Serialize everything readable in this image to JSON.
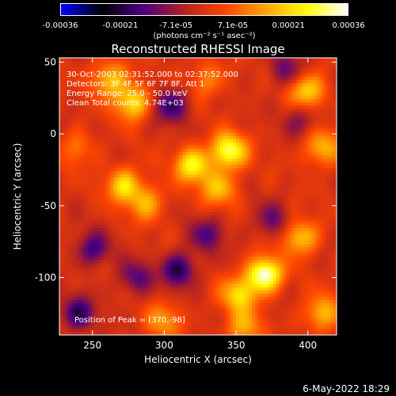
{
  "chart_data": {
    "type": "heatmap",
    "title": "Reconstructed RHESSI Image",
    "xlabel": "Heliocentric X (arcsec)",
    "ylabel": "Heliocentric Y (arcsec)",
    "xlim": [
      227,
      420
    ],
    "ylim": [
      -140,
      53
    ],
    "x_ticks": [
      250,
      300,
      350,
      400
    ],
    "y_ticks": [
      50,
      0,
      -50,
      -100
    ],
    "colorbar": {
      "min": -0.00036,
      "max": 0.00036,
      "tick_labels": [
        "-0.00036",
        "-0.00021",
        "-7.1e-05",
        "7.1e-05",
        "0.00021",
        "0.00036"
      ],
      "tick_values": [
        -0.00036,
        -0.00021,
        -7.1e-05,
        7.1e-05,
        0.00021,
        0.00036
      ],
      "units": "(photons cm⁻² s⁻¹ asec⁻²)",
      "colormap": [
        "#0000ff",
        "#000000",
        "#4b0082",
        "#b22222",
        "#ff4500",
        "#ffa500",
        "#ffff00",
        "#ffffff"
      ]
    },
    "annotations": [
      "30-Oct-2003 02:31:52.000 to 02:37:52.000",
      "Detectors: 3F 4F 5F 6F 7F 8F, Att 1",
      "Energy Range: 25.0 - 50.0 keV",
      "Clean     Total counts: 4.74E+03"
    ],
    "peak_label": "Position of Peak = [370,-98]",
    "peak_position": [
      370,
      -98
    ],
    "bright_sources": [
      {
        "x": 262,
        "y": 38,
        "value": 0.0002
      },
      {
        "x": 278,
        "y": 22,
        "value": 0.00024
      },
      {
        "x": 272,
        "y": -36,
        "value": 0.00022
      },
      {
        "x": 288,
        "y": -48,
        "value": 0.00016
      },
      {
        "x": 320,
        "y": -22,
        "value": 0.00026
      },
      {
        "x": 345,
        "y": -12,
        "value": 0.0003
      },
      {
        "x": 338,
        "y": -38,
        "value": 0.00018
      },
      {
        "x": 330,
        "y": 38,
        "value": 0.00012
      },
      {
        "x": 400,
        "y": 30,
        "value": 0.00022
      },
      {
        "x": 410,
        "y": -10,
        "value": 0.00018
      },
      {
        "x": 395,
        "y": -72,
        "value": 0.0002
      },
      {
        "x": 370,
        "y": -98,
        "value": 0.00036
      },
      {
        "x": 352,
        "y": -112,
        "value": 0.00022
      },
      {
        "x": 300,
        "y": -130,
        "value": 0.00014
      },
      {
        "x": 355,
        "y": -135,
        "value": 0.00016
      },
      {
        "x": 240,
        "y": -10,
        "value": 0.0001
      },
      {
        "x": 410,
        "y": -125,
        "value": 0.00018
      }
    ],
    "negative_sources": [
      {
        "x": 305,
        "y": 20,
        "value": -0.00018
      },
      {
        "x": 250,
        "y": -80,
        "value": -0.00016
      },
      {
        "x": 310,
        "y": -95,
        "value": -0.0002
      },
      {
        "x": 330,
        "y": -70,
        "value": -0.00014
      },
      {
        "x": 375,
        "y": -60,
        "value": -0.00012
      },
      {
        "x": 240,
        "y": -125,
        "value": -0.00018
      },
      {
        "x": 385,
        "y": 45,
        "value": -0.00012
      },
      {
        "x": 280,
        "y": -100,
        "value": -0.00014
      },
      {
        "x": 395,
        "y": 10,
        "value": -0.0001
      }
    ]
  },
  "footer": {
    "date": "6-May-2022 18:29"
  }
}
